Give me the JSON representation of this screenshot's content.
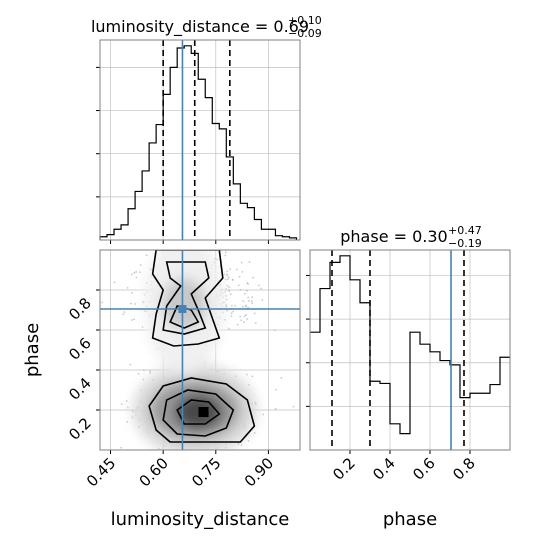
{
  "colors": {
    "truth": "#4682b4",
    "histogram": "#000000",
    "contour": "#000000",
    "frame": "#808080",
    "grid": "#c0c0c0",
    "background": "#ffffff"
  },
  "chart_data": {
    "type": "corner",
    "parameters": [
      "luminosity_distance",
      "phase"
    ],
    "truths": {
      "luminosity_distance": 0.655,
      "phase": 0.705
    },
    "titles": {
      "luminosity_distance": {
        "prefix": "luminosity_distance = 0.69",
        "plus": "+0.10",
        "minus": "−0.09"
      },
      "phase": {
        "prefix": "phase = 0.30",
        "plus": "+0.47",
        "minus": "−0.19"
      }
    },
    "quantiles": {
      "luminosity_distance": [
        0.6,
        0.69,
        0.79
      ],
      "phase": [
        0.11,
        0.3,
        0.77
      ]
    },
    "axes": {
      "luminosity_distance": {
        "range": [
          0.42,
          0.99
        ],
        "ticks": [
          0.45,
          0.6,
          0.75,
          0.9
        ],
        "tick_labels": [
          "0.45",
          "0.60",
          "0.75",
          "0.90"
        ],
        "label": "luminosity_distance"
      },
      "phase": {
        "range": [
          0.0,
          1.0
        ],
        "ticks": [
          0.2,
          0.4,
          0.6,
          0.8
        ],
        "tick_labels": [
          "0.2",
          "0.4",
          "0.6",
          "0.8"
        ],
        "label": "phase"
      }
    },
    "hist_luminosity_distance": {
      "bin_edges": [
        0.42,
        0.44,
        0.46,
        0.48,
        0.5,
        0.52,
        0.54,
        0.56,
        0.58,
        0.6,
        0.62,
        0.64,
        0.66,
        0.68,
        0.7,
        0.72,
        0.74,
        0.76,
        0.78,
        0.8,
        0.82,
        0.84,
        0.86,
        0.88,
        0.9,
        0.92,
        0.94,
        0.96,
        0.98
      ],
      "heights": [
        3,
        5,
        10,
        14,
        29,
        45,
        64,
        90,
        107,
        135,
        160,
        178,
        180,
        173,
        149,
        132,
        108,
        103,
        77,
        52,
        34,
        30,
        19,
        10,
        10,
        4,
        3,
        2
      ]
    },
    "hist_phase": {
      "bin_edges": [
        0.0,
        0.05,
        0.1,
        0.15,
        0.2,
        0.25,
        0.3,
        0.35,
        0.4,
        0.45,
        0.5,
        0.55,
        0.6,
        0.65,
        0.7,
        0.75,
        0.8,
        0.85,
        0.9,
        0.95,
        1.0
      ],
      "heights": [
        108,
        148,
        172,
        178,
        156,
        135,
        63,
        61,
        24,
        15,
        108,
        97,
        90,
        82,
        78,
        48,
        52,
        52,
        60,
        85
      ]
    },
    "scatter_2d": {
      "dense_blobs": [
        {
          "x": 0.68,
          "y": 0.2,
          "weight": "high"
        },
        {
          "x": 0.655,
          "y": 0.73,
          "weight": "medium"
        }
      ],
      "note_levels": 4
    }
  }
}
